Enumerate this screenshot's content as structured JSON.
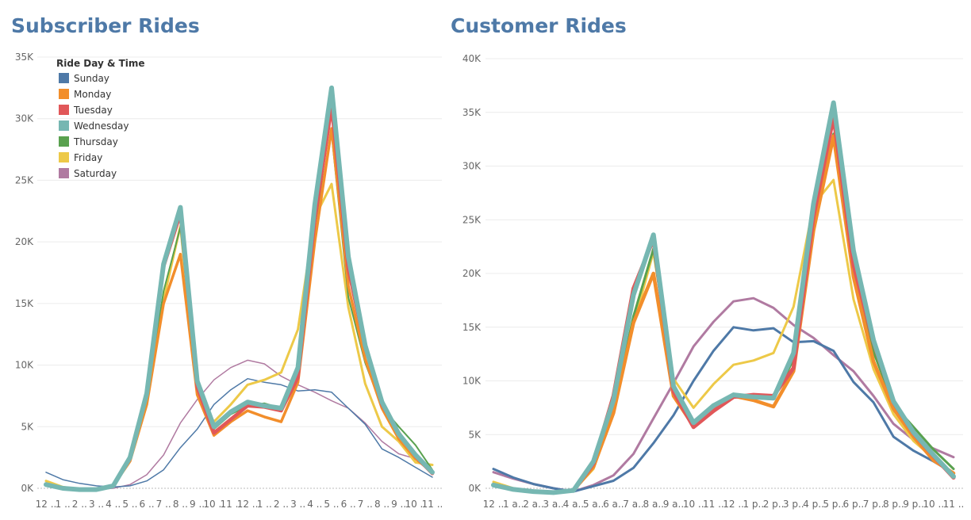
{
  "titles": {
    "left": "Subscriber Rides",
    "right": "Customer Rides"
  },
  "legend": {
    "title": "Ride Day & Time"
  },
  "chart_data": [
    {
      "type": "line",
      "title": "Subscriber Rides",
      "ylim": [
        0,
        35000
      ],
      "yticks": [
        "0K",
        "5K",
        "10K",
        "15K",
        "20K",
        "25K",
        "30K",
        "35K"
      ],
      "x": [
        "12 ..",
        "1 ..",
        "2 ..",
        "3 ..",
        "4 ..",
        "5 ..",
        "6 ..",
        "7 ..",
        "8 ..",
        "9 ..",
        "10 ..",
        "11 ..",
        "12 ..",
        "1 ..",
        "2 ..",
        "3 ..",
        "4 ..",
        "5 ..",
        "6 ..",
        "7 ..",
        "8 ..",
        "9 ..",
        "10 ..",
        "11 .."
      ],
      "series": [
        {
          "name": "Saturday",
          "color": "#b07aa1",
          "values": [
            300,
            100,
            -100,
            -100,
            0,
            300,
            1100,
            2700,
            5300,
            7200,
            8800,
            9800,
            10400,
            10100,
            9100,
            8400,
            7800,
            7100,
            6500,
            5300,
            3800,
            2800,
            2400,
            1500
          ]
        },
        {
          "name": "Sunday",
          "color": "#4e79a7",
          "values": [
            1300,
            700,
            400,
            200,
            100,
            200,
            600,
            1500,
            3300,
            4800,
            6800,
            8000,
            8900,
            8600,
            8400,
            7900,
            8000,
            7800,
            6500,
            5200,
            3200,
            2500,
            1700,
            900
          ]
        },
        {
          "name": "Friday",
          "color": "#edc948",
          "values": [
            600,
            100,
            -100,
            -100,
            200,
            2200,
            7000,
            15300,
            21300,
            7600,
            5400,
            6800,
            8400,
            8800,
            9400,
            12900,
            22000,
            24700,
            14700,
            8500,
            5000,
            3800,
            2100,
            1900
          ]
        },
        {
          "name": "Thursday",
          "color": "#59a14f",
          "values": [
            300,
            0,
            -100,
            -100,
            200,
            2400,
            7200,
            16000,
            21200,
            8000,
            4800,
            6000,
            6700,
            6900,
            6500,
            9500,
            21300,
            28800,
            15500,
            10200,
            6600,
            5000,
            3500,
            1500
          ]
        },
        {
          "name": "Monday",
          "color": "#f28e2b",
          "values": [
            300,
            0,
            -100,
            -100,
            200,
            2200,
            6800,
            15000,
            19000,
            7600,
            4300,
            5400,
            6300,
            5800,
            5400,
            8600,
            20000,
            29200,
            16400,
            10500,
            6500,
            4000,
            2400,
            1300
          ]
        },
        {
          "name": "Tuesday",
          "color": "#e15759",
          "values": [
            300,
            0,
            -100,
            -100,
            200,
            2400,
            7600,
            18000,
            22300,
            8200,
            4500,
            5600,
            6700,
            6600,
            6300,
            9000,
            21800,
            31000,
            17800,
            11500,
            6800,
            4500,
            2600,
            1200
          ]
        },
        {
          "name": "Wednesday",
          "color": "#76b7b2",
          "values": [
            300,
            0,
            -100,
            -100,
            200,
            2500,
            7700,
            18200,
            22800,
            8700,
            5000,
            6200,
            7000,
            6700,
            6500,
            9800,
            23000,
            32500,
            18800,
            11600,
            7000,
            4400,
            2700,
            1300
          ]
        }
      ]
    },
    {
      "type": "line",
      "title": "Customer Rides",
      "ylim": [
        0,
        40000
      ],
      "yticks": [
        "0K",
        "5K",
        "10K",
        "15K",
        "20K",
        "25K",
        "30K",
        "35K",
        "40K"
      ],
      "x": [
        "12 ..",
        "1 a..",
        "2 a..",
        "3 a..",
        "4 a..",
        "5 a..",
        "6 a..",
        "7 a..",
        "8 a..",
        "9 a..",
        "10 ..",
        "11 ..",
        "12 ..",
        "1 p..",
        "2 p..",
        "3 p..",
        "4 p..",
        "5 p..",
        "6 p..",
        "7 p..",
        "8 p..",
        "9 p..",
        "10 ..",
        "11 .."
      ],
      "series": [
        {
          "name": "Saturday",
          "color": "#b07aa1",
          "values": [
            1500,
            900,
            400,
            0,
            -300,
            300,
            1200,
            3200,
            6500,
            9800,
            13200,
            15500,
            17400,
            17700,
            16800,
            15200,
            14000,
            12400,
            10900,
            8600,
            6000,
            4500,
            3700,
            2900
          ]
        },
        {
          "name": "Sunday",
          "color": "#4e79a7",
          "values": [
            1800,
            1000,
            400,
            0,
            -300,
            200,
            700,
            1900,
            4200,
            6800,
            10000,
            12800,
            15000,
            14700,
            14900,
            13600,
            13700,
            12800,
            9900,
            8000,
            4800,
            3500,
            2500,
            1400
          ]
        },
        {
          "name": "Friday",
          "color": "#edc948",
          "values": [
            600,
            0,
            -300,
            -400,
            -200,
            1800,
            7000,
            15200,
            22000,
            10200,
            7500,
            9700,
            11500,
            11900,
            12600,
            16900,
            26400,
            28700,
            17600,
            11100,
            6900,
            4400,
            2800,
            1300
          ]
        },
        {
          "name": "Thursday",
          "color": "#59a14f",
          "values": [
            300,
            -100,
            -300,
            -400,
            -200,
            2100,
            7400,
            16000,
            22300,
            9600,
            6000,
            7600,
            8800,
            8400,
            8300,
            12000,
            24200,
            33000,
            20300,
            12700,
            7800,
            5700,
            3600,
            1800
          ]
        },
        {
          "name": "Monday",
          "color": "#f28e2b",
          "values": [
            300,
            -100,
            -300,
            -400,
            -200,
            2000,
            7000,
            15400,
            20000,
            8600,
            5800,
            7200,
            8600,
            8200,
            7600,
            10900,
            24000,
            32800,
            19700,
            11800,
            7400,
            4800,
            2600,
            1400
          ]
        },
        {
          "name": "Tuesday",
          "color": "#e15759",
          "values": [
            300,
            -100,
            -300,
            -400,
            -200,
            2300,
            8600,
            18600,
            23200,
            9000,
            5700,
            7200,
            8500,
            8700,
            8600,
            11200,
            25300,
            34600,
            20800,
            13600,
            8000,
            5100,
            3000,
            1000
          ]
        },
        {
          "name": "Wednesday",
          "color": "#76b7b2",
          "values": [
            300,
            -100,
            -300,
            -400,
            -200,
            2500,
            8200,
            18000,
            23600,
            9500,
            6100,
            7700,
            8700,
            8500,
            8400,
            12600,
            26500,
            35900,
            22100,
            13800,
            8100,
            5200,
            3100,
            1100
          ]
        }
      ]
    }
  ]
}
